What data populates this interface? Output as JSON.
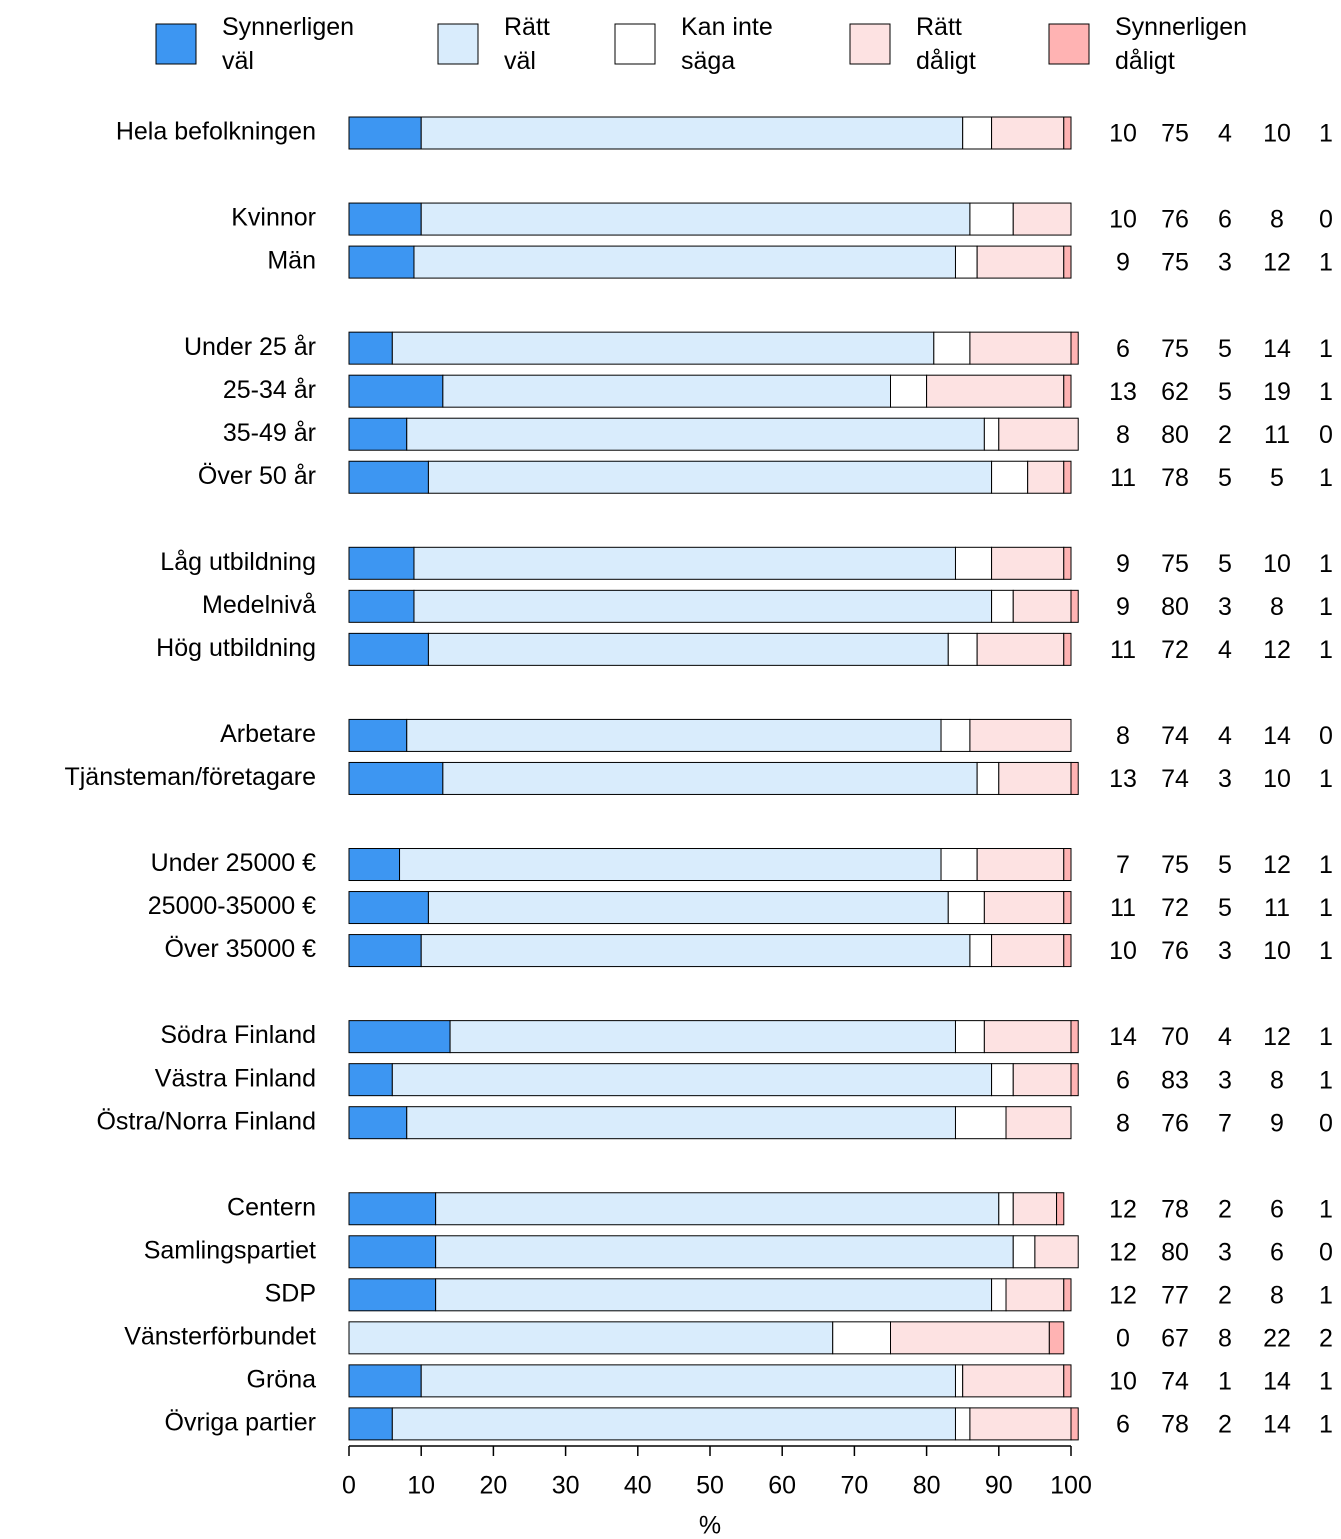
{
  "chart_data": {
    "type": "stacked-bar-horizontal",
    "x_label": "%",
    "categories": [
      "Hela befolkningen",
      null,
      "Kvinnor",
      "Män",
      null,
      "Under 25 år",
      "25-34 år",
      "35-49 år",
      "Över 50 år",
      null,
      "Låg utbildning",
      "Medelnivå",
      "Hög utbildning",
      null,
      "Arbetare",
      "Tjänsteman/företagare",
      null,
      "Under 25000 €",
      "25000-35000 €",
      "Över 35000 €",
      null,
      "Södra Finland",
      "Västra Finland",
      "Östra/Norra Finland",
      null,
      "Centern",
      "Samlingspartiet",
      "SDP",
      "Vänsterförbundet",
      "Gröna",
      "Övriga partier"
    ],
    "series": [
      {
        "name": "Synnerligen väl",
        "color": "#3d96f2",
        "values": [
          10,
          null,
          10,
          9,
          null,
          6,
          13,
          8,
          11,
          null,
          9,
          9,
          11,
          null,
          8,
          13,
          null,
          7,
          11,
          10,
          null,
          14,
          6,
          8,
          null,
          12,
          12,
          12,
          0,
          10,
          6
        ]
      },
      {
        "name": "Rätt väl",
        "color": "#d9ecfc",
        "values": [
          75,
          null,
          76,
          75,
          null,
          75,
          62,
          80,
          78,
          null,
          75,
          80,
          72,
          null,
          74,
          74,
          null,
          75,
          72,
          76,
          null,
          70,
          83,
          76,
          null,
          78,
          80,
          77,
          67,
          74,
          78
        ]
      },
      {
        "name": "Kan inte säga",
        "color": "#ffffff",
        "values": [
          4,
          null,
          6,
          3,
          null,
          5,
          5,
          2,
          5,
          null,
          5,
          3,
          4,
          null,
          4,
          3,
          null,
          5,
          5,
          3,
          null,
          4,
          3,
          7,
          null,
          2,
          3,
          2,
          8,
          1,
          2
        ]
      },
      {
        "name": "Rätt dåligt",
        "color": "#fde2e2",
        "values": [
          10,
          null,
          8,
          12,
          null,
          14,
          19,
          11,
          5,
          null,
          10,
          8,
          12,
          null,
          14,
          10,
          null,
          12,
          11,
          10,
          null,
          12,
          8,
          9,
          null,
          6,
          6,
          8,
          22,
          14,
          14
        ]
      },
      {
        "name": "Synnerligen dåligt",
        "color": "#ffb3b3",
        "values": [
          1,
          null,
          0,
          1,
          null,
          1,
          1,
          0,
          1,
          null,
          1,
          1,
          1,
          null,
          0,
          1,
          null,
          1,
          1,
          1,
          null,
          1,
          1,
          0,
          null,
          1,
          0,
          1,
          2,
          1,
          1
        ]
      }
    ],
    "xlim": [
      0,
      100
    ],
    "xticks": [
      0,
      10,
      20,
      30,
      40,
      50,
      60,
      70,
      80,
      90,
      100
    ]
  }
}
